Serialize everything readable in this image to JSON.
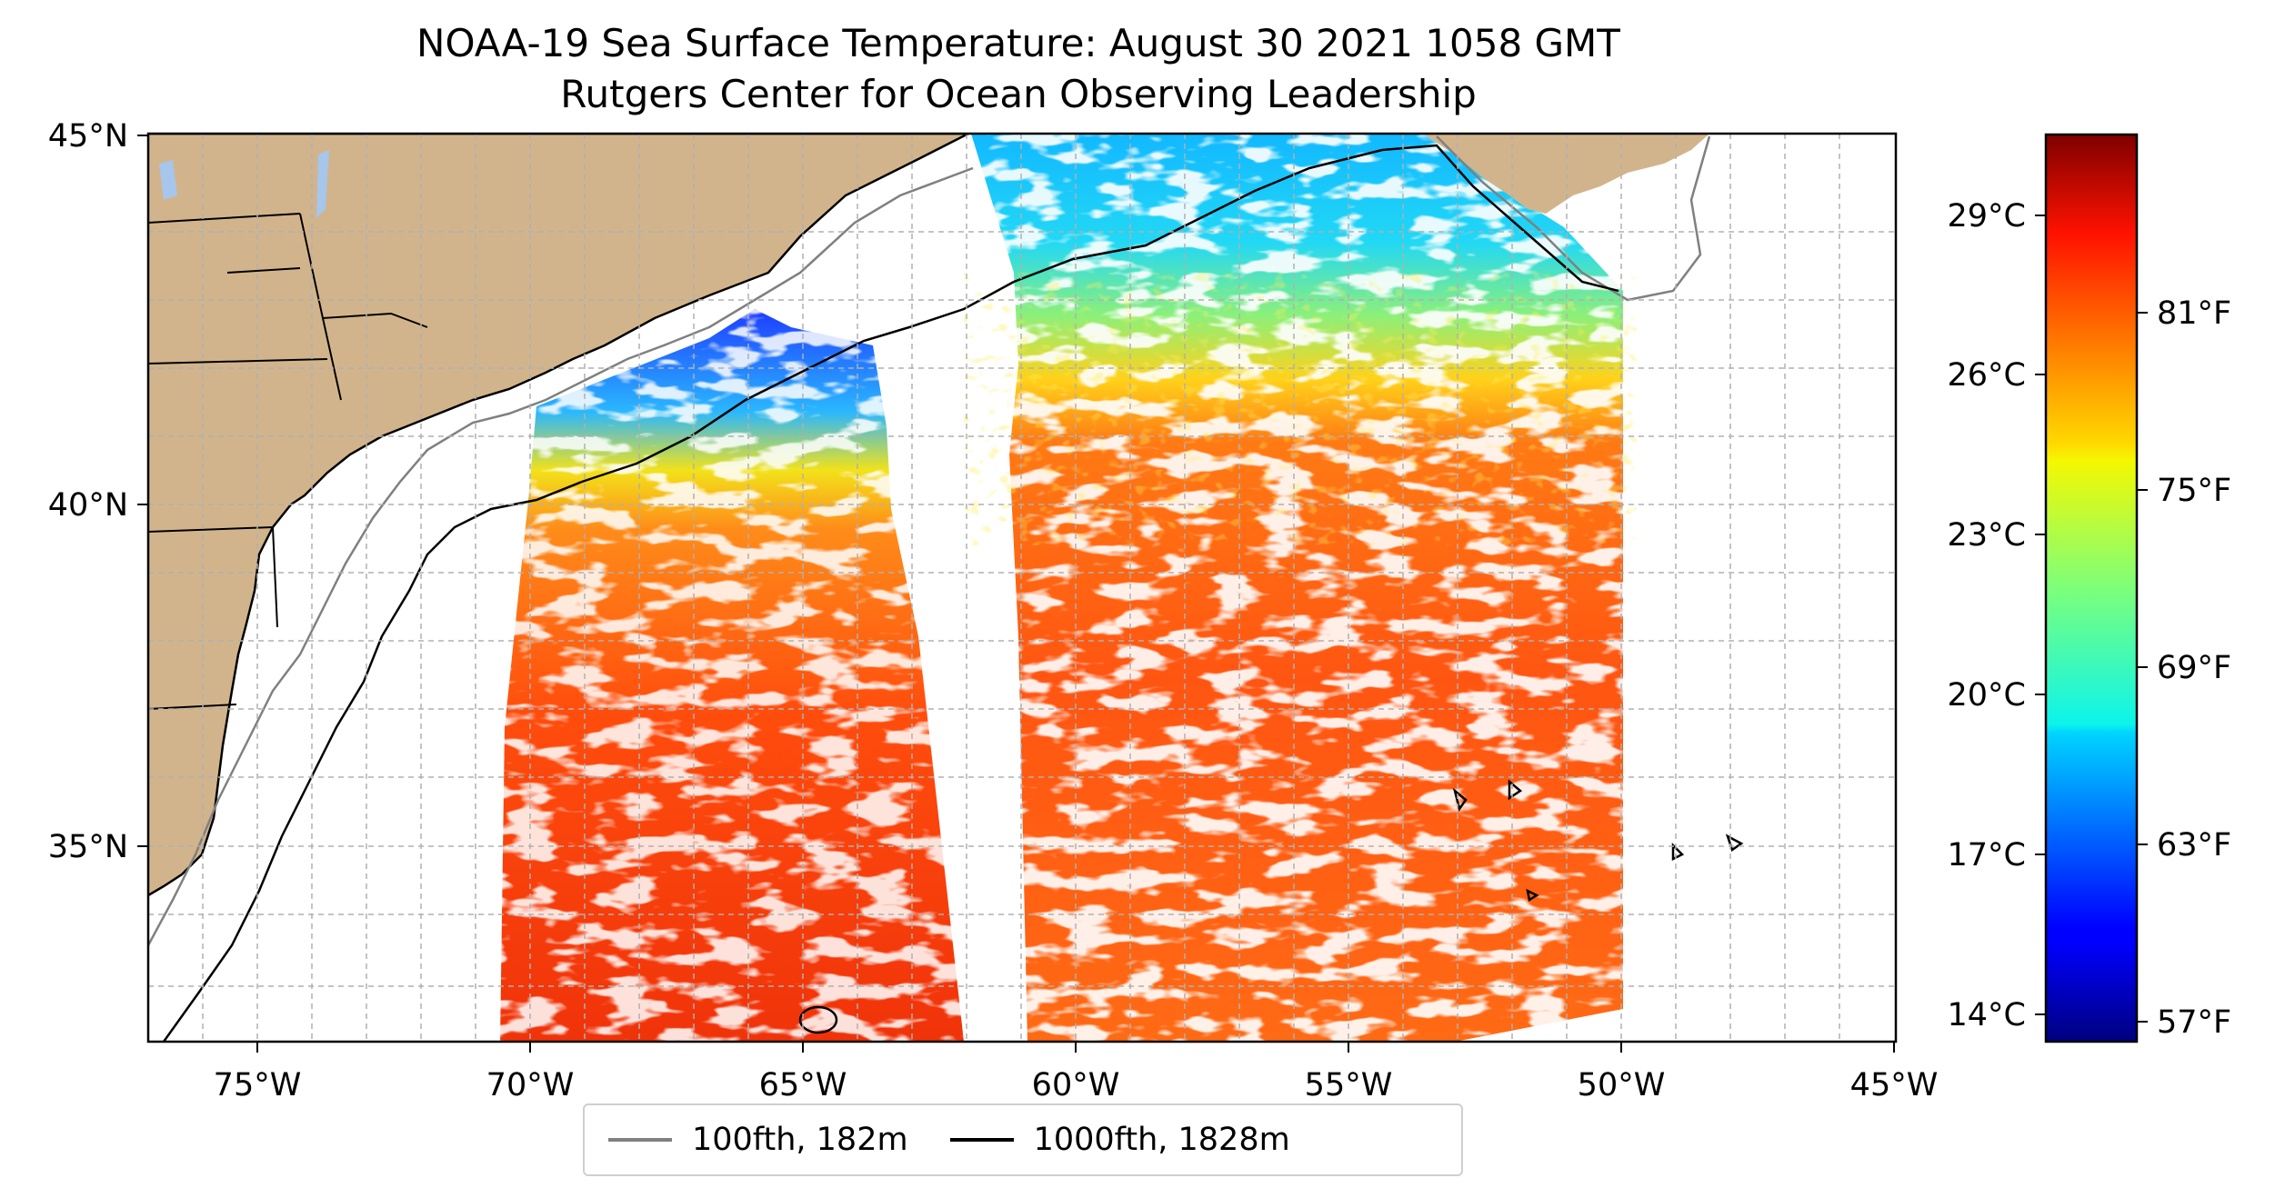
{
  "title": "NOAA-19 Sea Surface Temperature: August 30 2021 1058 GMT",
  "subtitle": "Rutgers Center for Ocean Observing Leadership",
  "map": {
    "lon_range": [
      -77,
      -45
    ],
    "lat_range": [
      32.5,
      45
    ],
    "x_ticks": [
      "75°W",
      "70°W",
      "65°W",
      "60°W",
      "55°W",
      "50°W",
      "45°W"
    ],
    "y_ticks": [
      "35°N",
      "40°N",
      "45°N"
    ],
    "grid": true,
    "colors": {
      "land": "#d2b48c",
      "lakes": "#a6c6ec",
      "ocean": "#ffffff"
    }
  },
  "legend": {
    "items": [
      {
        "label": "100fth, 182m",
        "color": "#808080"
      },
      {
        "label": "1000fth, 1828m",
        "color": "#000000"
      }
    ],
    "placement": "bottom-center"
  },
  "colorbar": {
    "colormap": "jet",
    "celsius_ticks": [
      "29°C",
      "26°C",
      "23°C",
      "20°C",
      "17°C",
      "14°C"
    ],
    "fahrenheit_ticks": [
      "81°F",
      "75°F",
      "69°F",
      "63°F",
      "57°F"
    ]
  }
}
